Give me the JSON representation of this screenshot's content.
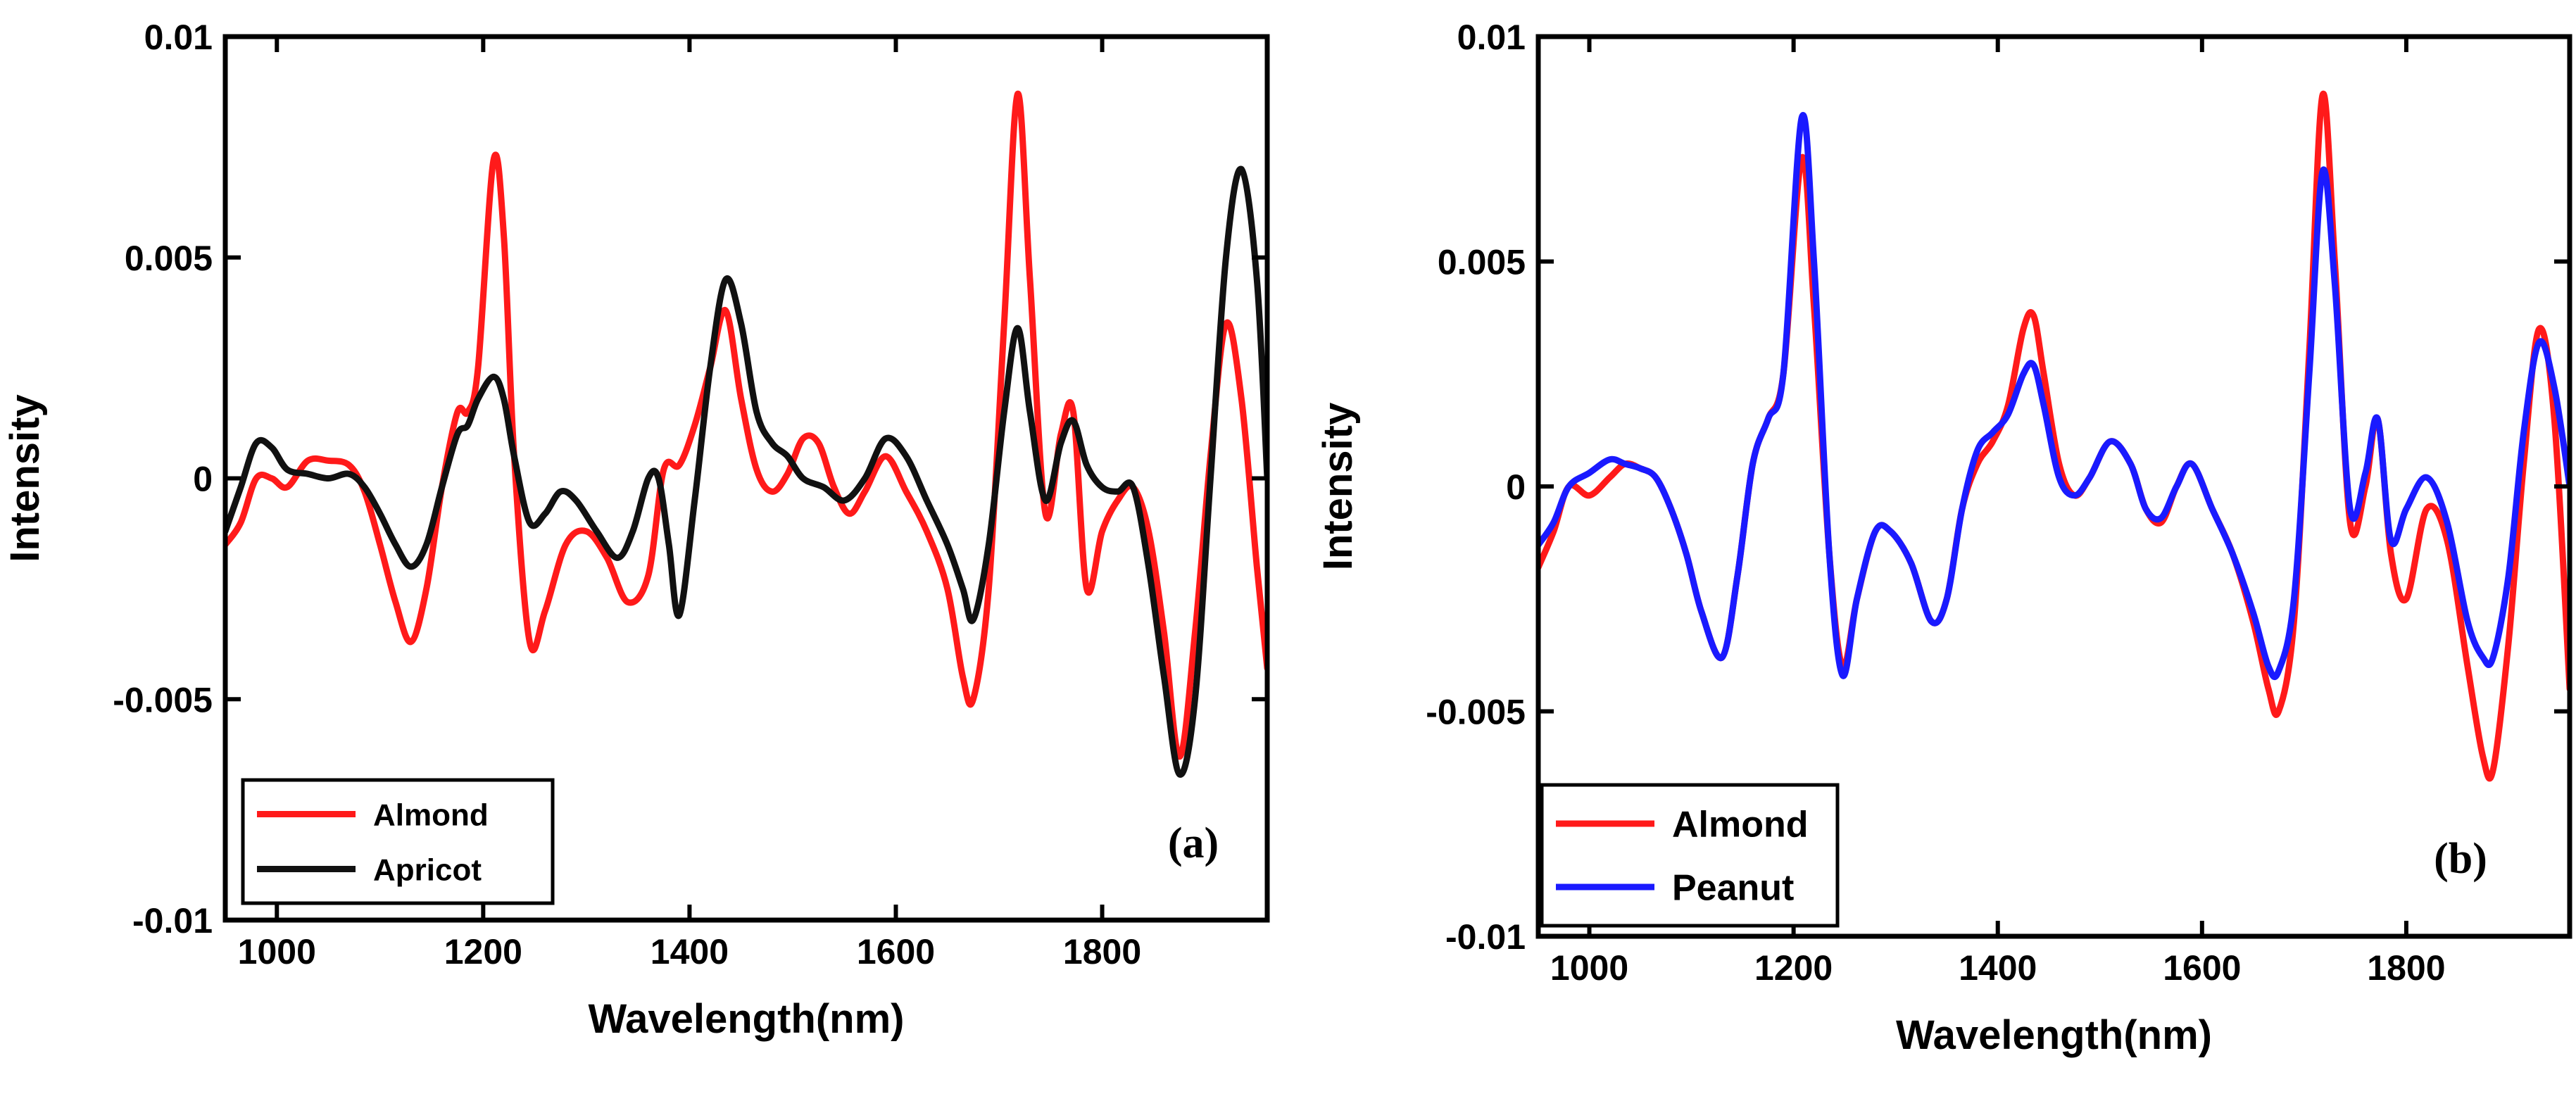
{
  "chart_data": [
    {
      "type": "line",
      "panel_label": "(a)",
      "xlabel": "Wavelength(nm)",
      "ylabel": "Intensity",
      "xlim": [
        950,
        1960
      ],
      "ylim": [
        -0.01,
        0.01
      ],
      "xticks": [
        1000,
        1200,
        1400,
        1600,
        1800
      ],
      "xtick_labels": [
        "1000",
        "1200",
        "1400",
        "1600",
        "1800"
      ],
      "yticks": [
        -0.01,
        -0.005,
        0,
        0.005,
        0.01
      ],
      "ytick_labels": [
        "-0.01",
        "-0.005",
        "0",
        "0.005",
        "0.01"
      ],
      "legend_position": "bottom-left",
      "series": [
        {
          "name": "Almond",
          "color": "#ff1a1a",
          "x": [
            950,
            965,
            980,
            995,
            1010,
            1030,
            1050,
            1070,
            1085,
            1100,
            1115,
            1130,
            1145,
            1160,
            1175,
            1185,
            1195,
            1210,
            1220,
            1230,
            1245,
            1260,
            1280,
            1300,
            1320,
            1340,
            1360,
            1375,
            1390,
            1405,
            1420,
            1435,
            1450,
            1465,
            1480,
            1495,
            1510,
            1525,
            1540,
            1555,
            1570,
            1590,
            1610,
            1630,
            1650,
            1665,
            1675,
            1690,
            1705,
            1718,
            1730,
            1745,
            1760,
            1772,
            1785,
            1800,
            1815,
            1830,
            1845,
            1860,
            1875,
            1890,
            1905,
            1920,
            1935,
            1950,
            1960
          ],
          "y": [
            -0.0015,
            -0.001,
            0.0,
            0.0,
            -0.0002,
            0.0004,
            0.0004,
            0.0003,
            -0.0003,
            -0.0015,
            -0.0028,
            -0.0037,
            -0.0025,
            -0.0002,
            0.0015,
            0.0015,
            0.0025,
            0.0072,
            0.0055,
            0.0005,
            -0.0037,
            -0.003,
            -0.0015,
            -0.0012,
            -0.0018,
            -0.0028,
            -0.0022,
            0.0002,
            0.0003,
            0.0012,
            0.0025,
            0.0038,
            0.0018,
            0.0002,
            -0.0003,
            0.0001,
            0.0009,
            0.0008,
            -0.0002,
            -0.0008,
            -0.0003,
            0.0005,
            -0.0003,
            -0.0012,
            -0.0025,
            -0.0045,
            -0.005,
            -0.0025,
            0.0035,
            0.0087,
            0.0045,
            -0.0008,
            0.001,
            0.0015,
            -0.0025,
            -0.0012,
            -0.0005,
            -0.0002,
            -0.0012,
            -0.0035,
            -0.0063,
            -0.0035,
            0.0005,
            0.0035,
            0.0018,
            -0.002,
            -0.0043
          ]
        },
        {
          "name": "Apricot",
          "color": "#111111",
          "x": [
            950,
            965,
            980,
            995,
            1010,
            1030,
            1050,
            1070,
            1085,
            1100,
            1115,
            1130,
            1145,
            1160,
            1175,
            1185,
            1195,
            1210,
            1220,
            1230,
            1245,
            1260,
            1275,
            1290,
            1310,
            1330,
            1345,
            1360,
            1370,
            1380,
            1390,
            1405,
            1420,
            1435,
            1450,
            1465,
            1480,
            1495,
            1510,
            1530,
            1550,
            1570,
            1590,
            1610,
            1630,
            1650,
            1665,
            1675,
            1690,
            1705,
            1718,
            1730,
            1745,
            1760,
            1772,
            1785,
            1800,
            1815,
            1830,
            1845,
            1860,
            1875,
            1890,
            1905,
            1920,
            1935,
            1950,
            1960
          ],
          "y": [
            -0.0012,
            -0.0002,
            0.0008,
            0.0007,
            0.0002,
            0.0001,
            0.0,
            0.0001,
            -0.0002,
            -0.0008,
            -0.0015,
            -0.002,
            -0.0015,
            -0.0002,
            0.001,
            0.0012,
            0.0018,
            0.0023,
            0.0018,
            0.0005,
            -0.001,
            -0.0008,
            -0.0003,
            -0.0005,
            -0.0012,
            -0.0018,
            -0.0012,
            0.0,
            0.0,
            -0.0015,
            -0.0031,
            -0.0005,
            0.0025,
            0.0045,
            0.0035,
            0.0015,
            0.0008,
            0.0005,
            0.0,
            -0.0002,
            -0.0005,
            0.0,
            0.0009,
            0.0005,
            -0.0005,
            -0.0015,
            -0.0025,
            -0.0032,
            -0.0015,
            0.0015,
            0.0034,
            0.0015,
            -0.0005,
            0.0008,
            0.0013,
            0.0003,
            -0.0002,
            -0.0003,
            -0.0002,
            -0.002,
            -0.0045,
            -0.0067,
            -0.005,
            0.0,
            0.005,
            0.007,
            0.0045,
            0.0
          ]
        }
      ]
    },
    {
      "type": "line",
      "panel_label": "(b)",
      "xlabel": "Wavelength(nm)",
      "ylabel": "Intensity",
      "xlim": [
        950,
        1960
      ],
      "ylim": [
        -0.01,
        0.01
      ],
      "xticks": [
        1000,
        1200,
        1400,
        1600,
        1800
      ],
      "xtick_labels": [
        "1000",
        "1200",
        "1400",
        "1600",
        "1800"
      ],
      "yticks": [
        -0.01,
        -0.005,
        0,
        0.005,
        0.01
      ],
      "ytick_labels": [
        "-0.01",
        "-0.005",
        "0",
        "0.005",
        "0.01"
      ],
      "legend_position": "bottom-left",
      "series": [
        {
          "name": "Almond",
          "color": "#ff1a1a",
          "x": [
            950,
            965,
            980,
            1000,
            1020,
            1035,
            1050,
            1065,
            1080,
            1095,
            1110,
            1130,
            1145,
            1160,
            1175,
            1190,
            1208,
            1220,
            1235,
            1248,
            1262,
            1280,
            1295,
            1315,
            1335,
            1350,
            1365,
            1380,
            1395,
            1410,
            1425,
            1435,
            1445,
            1460,
            1475,
            1490,
            1510,
            1530,
            1545,
            1560,
            1575,
            1590,
            1610,
            1630,
            1650,
            1665,
            1675,
            1690,
            1705,
            1718,
            1730,
            1745,
            1760,
            1772,
            1785,
            1800,
            1820,
            1840,
            1860,
            1875,
            1885,
            1900,
            1915,
            1930,
            1945,
            1960
          ],
          "y": [
            -0.0018,
            -0.001,
            0.0,
            -0.0002,
            0.0002,
            0.0005,
            0.0004,
            0.0002,
            -0.0005,
            -0.0015,
            -0.0028,
            -0.0038,
            -0.002,
            0.0005,
            0.0015,
            0.0025,
            0.0073,
            0.004,
            -0.0015,
            -0.004,
            -0.0025,
            -0.001,
            -0.001,
            -0.0017,
            -0.003,
            -0.0025,
            -0.0005,
            0.0005,
            0.001,
            0.0018,
            0.0035,
            0.0038,
            0.0025,
            0.0005,
            -0.0002,
            0.0002,
            0.001,
            0.0005,
            -0.0005,
            -0.0008,
            0.0,
            0.0005,
            -0.0005,
            -0.0015,
            -0.003,
            -0.0045,
            -0.005,
            -0.003,
            0.003,
            0.0087,
            0.005,
            -0.0008,
            0.0,
            0.0015,
            -0.0015,
            -0.0025,
            -0.0005,
            -0.0012,
            -0.004,
            -0.006,
            -0.0063,
            -0.0035,
            0.0005,
            0.0035,
            0.0015,
            -0.0045
          ]
        },
        {
          "name": "Peanut",
          "color": "#1a1aff",
          "x": [
            950,
            965,
            980,
            1000,
            1020,
            1035,
            1050,
            1065,
            1080,
            1095,
            1110,
            1130,
            1145,
            1160,
            1175,
            1190,
            1208,
            1220,
            1235,
            1248,
            1262,
            1280,
            1295,
            1315,
            1335,
            1350,
            1365,
            1380,
            1395,
            1410,
            1425,
            1435,
            1445,
            1460,
            1475,
            1490,
            1510,
            1530,
            1545,
            1560,
            1575,
            1590,
            1610,
            1630,
            1650,
            1665,
            1675,
            1690,
            1705,
            1718,
            1730,
            1745,
            1760,
            1772,
            1785,
            1800,
            1820,
            1840,
            1860,
            1875,
            1885,
            1900,
            1915,
            1930,
            1945,
            1960
          ],
          "y": [
            -0.0013,
            -0.0008,
            0.0,
            0.0003,
            0.0006,
            0.0005,
            0.0004,
            0.0002,
            -0.0005,
            -0.0015,
            -0.0028,
            -0.0038,
            -0.002,
            0.0005,
            0.0015,
            0.0025,
            0.0082,
            0.005,
            -0.0015,
            -0.0042,
            -0.0025,
            -0.001,
            -0.001,
            -0.0017,
            -0.003,
            -0.0025,
            -0.0005,
            0.0008,
            0.0012,
            0.0016,
            0.0025,
            0.0027,
            0.0018,
            0.0002,
            -0.0002,
            0.0002,
            0.001,
            0.0005,
            -0.0005,
            -0.0007,
            0.0,
            0.0005,
            -0.0005,
            -0.0015,
            -0.0028,
            -0.004,
            -0.0041,
            -0.0025,
            0.0025,
            0.007,
            0.0045,
            -0.0005,
            0.0003,
            0.0015,
            -0.0012,
            -0.0005,
            0.0002,
            -0.0008,
            -0.003,
            -0.0038,
            -0.0038,
            -0.002,
            0.0012,
            0.0032,
            0.0022,
            0.0
          ]
        }
      ]
    }
  ]
}
